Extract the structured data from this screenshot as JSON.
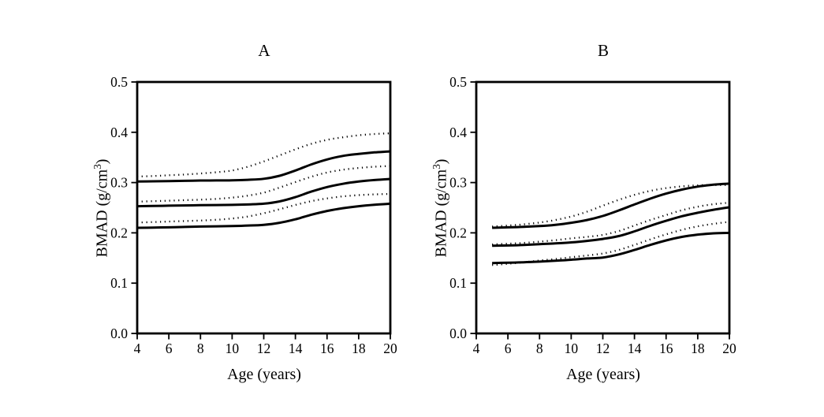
{
  "figure": {
    "background": "#ffffff",
    "ink_color": "#000000"
  },
  "chart_data": [
    {
      "type": "line",
      "panel_label": "A",
      "title": "A",
      "xlabel": "Age (years)",
      "ylabel": "BMAD (g/cm3)",
      "ylabel_parts": {
        "pre": "BMAD (g/cm",
        "sup": "3",
        "post": ")"
      },
      "xlim": [
        4,
        20
      ],
      "ylim": [
        0.0,
        0.5
      ],
      "xticks": [
        4,
        6,
        8,
        10,
        12,
        14,
        16,
        18,
        20
      ],
      "ytick_labels": [
        "0.0",
        "0.1",
        "0.2",
        "0.3",
        "0.4",
        "0.5"
      ],
      "grid": false,
      "legend": "none",
      "x": [
        4,
        5,
        6,
        7,
        8,
        9,
        10,
        11,
        12,
        13,
        14,
        15,
        16,
        17,
        18,
        19,
        20
      ],
      "series": [
        {
          "name": "upper-dotted",
          "style": "dotted",
          "values": [
            0.312,
            0.313,
            0.3145,
            0.316,
            0.318,
            0.3205,
            0.324,
            0.3315,
            0.342,
            0.354,
            0.366,
            0.377,
            0.385,
            0.39,
            0.394,
            0.3965,
            0.398
          ]
        },
        {
          "name": "upper-solid",
          "style": "solid",
          "values": [
            0.302,
            0.3025,
            0.303,
            0.3035,
            0.304,
            0.3042,
            0.3045,
            0.3055,
            0.3075,
            0.3135,
            0.324,
            0.336,
            0.346,
            0.353,
            0.357,
            0.36,
            0.362
          ]
        },
        {
          "name": "middle-dotted",
          "style": "dotted",
          "values": [
            0.262,
            0.263,
            0.264,
            0.265,
            0.266,
            0.2675,
            0.27,
            0.274,
            0.28,
            0.29,
            0.301,
            0.3115,
            0.32,
            0.3255,
            0.329,
            0.3315,
            0.333
          ]
        },
        {
          "name": "middle-solid",
          "style": "solid",
          "values": [
            0.253,
            0.2535,
            0.254,
            0.2545,
            0.255,
            0.2553,
            0.2557,
            0.2565,
            0.258,
            0.2625,
            0.271,
            0.282,
            0.291,
            0.2975,
            0.302,
            0.305,
            0.307
          ]
        },
        {
          "name": "lower-dotted",
          "style": "dotted",
          "values": [
            0.2205,
            0.2215,
            0.2225,
            0.2235,
            0.2245,
            0.226,
            0.2285,
            0.2325,
            0.239,
            0.247,
            0.2555,
            0.263,
            0.2685,
            0.2725,
            0.275,
            0.2765,
            0.2775
          ]
        },
        {
          "name": "lower-solid",
          "style": "solid",
          "values": [
            0.21,
            0.2105,
            0.211,
            0.2118,
            0.2125,
            0.213,
            0.2135,
            0.2145,
            0.216,
            0.22,
            0.227,
            0.236,
            0.2435,
            0.249,
            0.253,
            0.256,
            0.258
          ]
        }
      ]
    },
    {
      "type": "line",
      "panel_label": "B",
      "title": "B",
      "xlabel": "Age (years)",
      "ylabel": "BMAD (g/cm3)",
      "ylabel_parts": {
        "pre": "BMAD (g/cm",
        "sup": "3",
        "post": ")"
      },
      "xlim": [
        4,
        20
      ],
      "ylim": [
        0.0,
        0.5
      ],
      "xticks": [
        4,
        6,
        8,
        10,
        12,
        14,
        16,
        18,
        20
      ],
      "ytick_labels": [
        "0.0",
        "0.1",
        "0.2",
        "0.3",
        "0.4",
        "0.5"
      ],
      "grid": false,
      "legend": "none",
      "x": [
        5,
        6,
        7,
        8,
        9,
        10,
        11,
        12,
        13,
        14,
        15,
        16,
        17,
        18,
        19,
        20
      ],
      "series": [
        {
          "name": "upper-dotted",
          "style": "dotted",
          "values": [
            0.2125,
            0.2145,
            0.217,
            0.2205,
            0.2255,
            0.2325,
            0.242,
            0.254,
            0.2655,
            0.2755,
            0.2835,
            0.289,
            0.2925,
            0.2945,
            0.295,
            0.295
          ]
        },
        {
          "name": "upper-solid",
          "style": "solid",
          "values": [
            0.21,
            0.211,
            0.212,
            0.2135,
            0.216,
            0.22,
            0.2255,
            0.2335,
            0.2445,
            0.2565,
            0.268,
            0.278,
            0.286,
            0.292,
            0.296,
            0.298
          ]
        },
        {
          "name": "middle-dotted",
          "style": "dotted",
          "values": [
            0.177,
            0.1785,
            0.18,
            0.1825,
            0.1855,
            0.189,
            0.192,
            0.196,
            0.2035,
            0.2145,
            0.2255,
            0.2355,
            0.245,
            0.252,
            0.257,
            0.26
          ]
        },
        {
          "name": "middle-solid",
          "style": "solid",
          "values": [
            0.1745,
            0.175,
            0.176,
            0.1775,
            0.179,
            0.181,
            0.184,
            0.188,
            0.1935,
            0.203,
            0.214,
            0.224,
            0.233,
            0.24,
            0.246,
            0.251
          ]
        },
        {
          "name": "lower-dotted",
          "style": "dotted",
          "values": [
            0.136,
            0.1385,
            0.1415,
            0.145,
            0.148,
            0.1515,
            0.155,
            0.159,
            0.166,
            0.176,
            0.187,
            0.197,
            0.206,
            0.213,
            0.218,
            0.222
          ]
        },
        {
          "name": "lower-solid",
          "style": "solid",
          "values": [
            0.14,
            0.1407,
            0.1415,
            0.1428,
            0.1445,
            0.1465,
            0.149,
            0.151,
            0.157,
            0.166,
            0.176,
            0.185,
            0.192,
            0.1965,
            0.199,
            0.2
          ]
        }
      ]
    }
  ]
}
